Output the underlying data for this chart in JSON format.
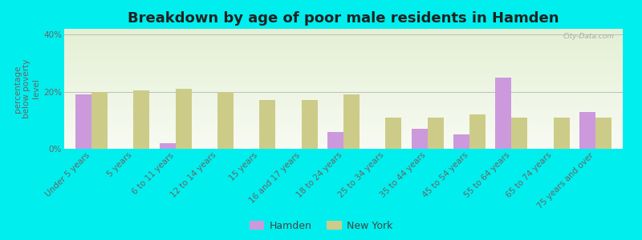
{
  "title": "Breakdown by age of poor male residents in Hamden",
  "ylabel": "percentage\nbelow poverty\nlevel",
  "categories": [
    "Under 5 years",
    "5 years",
    "6 to 11 years",
    "12 to 14 years",
    "15 years",
    "16 and 17 years",
    "18 to 24 years",
    "25 to 34 years",
    "35 to 44 years",
    "45 to 54 years",
    "55 to 64 years",
    "65 to 74 years",
    "75 years and over"
  ],
  "hamden": [
    19.0,
    0.0,
    2.0,
    0.0,
    0.0,
    0.0,
    6.0,
    0.0,
    7.0,
    5.0,
    25.0,
    0.0,
    13.0
  ],
  "new_york": [
    20.0,
    20.5,
    21.0,
    20.0,
    17.0,
    17.0,
    19.0,
    11.0,
    11.0,
    12.0,
    11.0,
    11.0,
    11.0
  ],
  "hamden_color": "#cc99dd",
  "new_york_color": "#cccc88",
  "background_color": "#00eeee",
  "ylim": [
    0,
    42
  ],
  "yticks": [
    0,
    20,
    40
  ],
  "ytick_labels": [
    "0%",
    "20%",
    "40%"
  ],
  "title_fontsize": 13,
  "tick_fontsize": 7.5,
  "ylabel_fontsize": 7.5,
  "bar_width": 0.38,
  "legend_hamden": "Hamden",
  "legend_new_york": "New York",
  "watermark": "City-Data.com"
}
